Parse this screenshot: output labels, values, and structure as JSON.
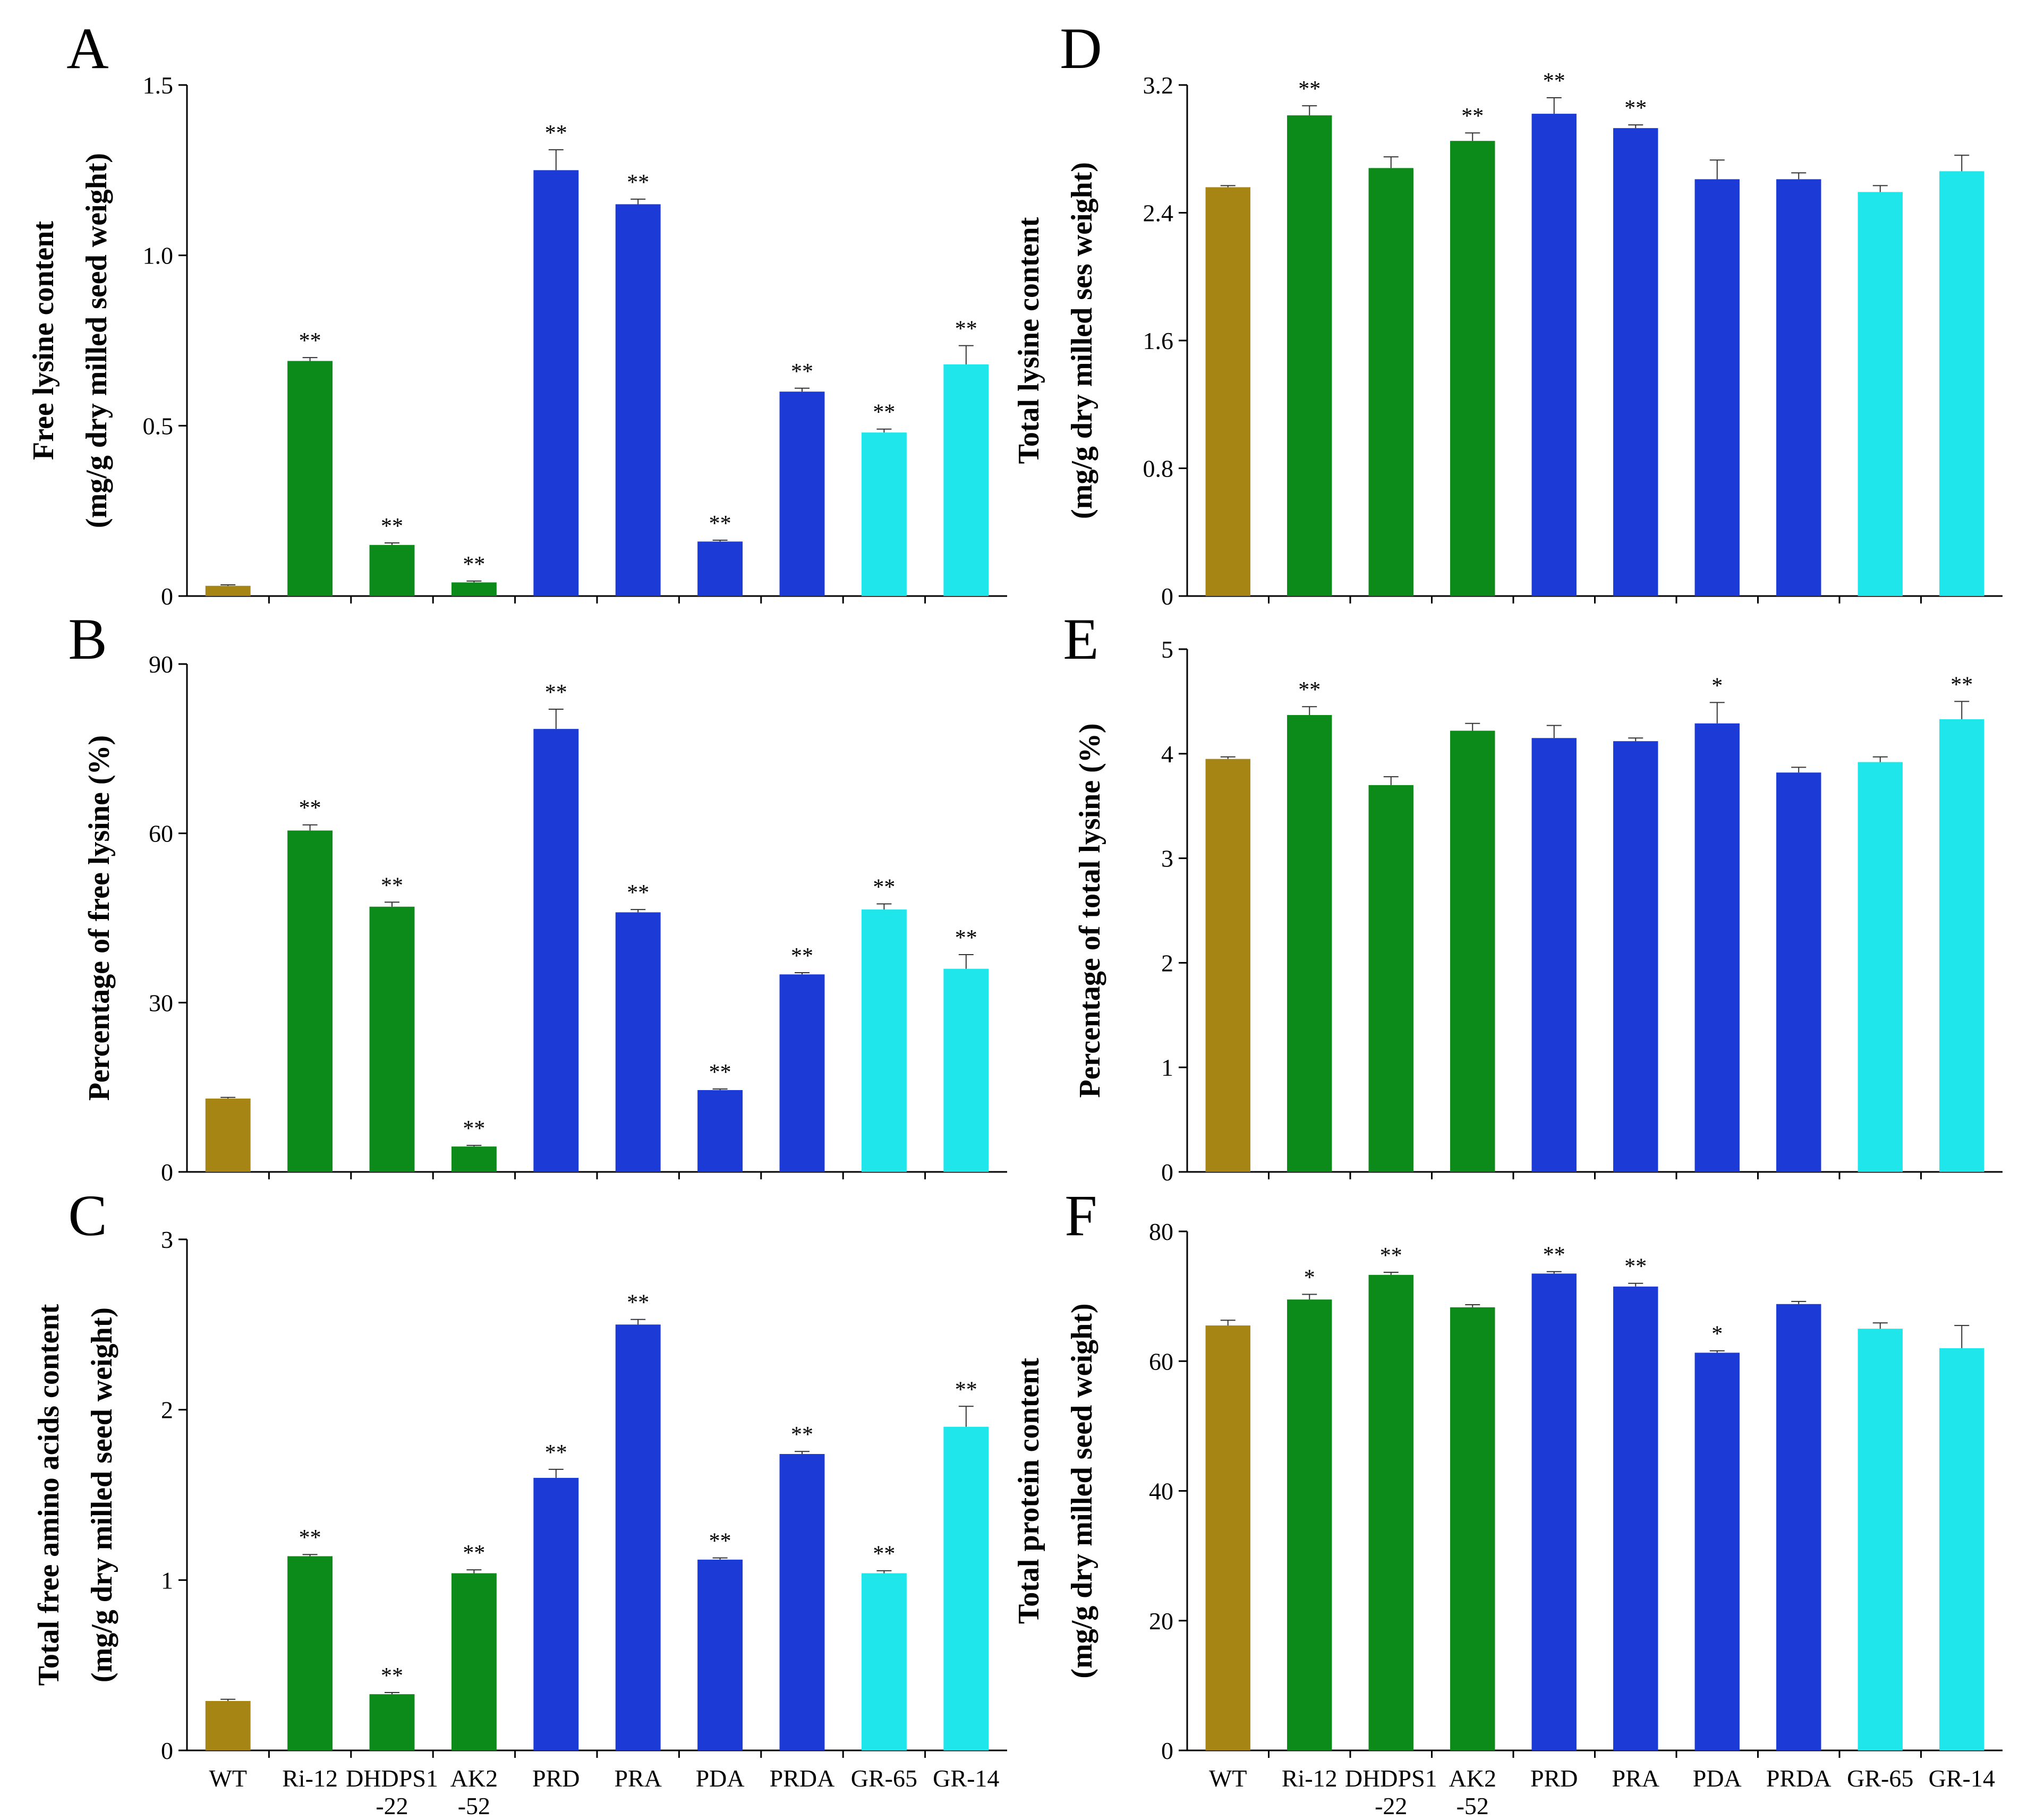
{
  "figure": {
    "categories": [
      "WT",
      "Ri-12",
      "DHDPS1",
      "AK2",
      "PRD",
      "PRA",
      "PDA",
      "PRDA",
      "GR-65",
      "GR-14"
    ],
    "category_sublabels": [
      "",
      "",
      "-22",
      "-52",
      "",
      "",
      "",
      "",
      "",
      ""
    ],
    "colors": {
      "wt": "#a68514",
      "green": "#0c8a1a",
      "blue": "#1b3ad6",
      "cyan": "#1fe6ea"
    },
    "bar_colors": [
      "#a68514",
      "#0c8a1a",
      "#0c8a1a",
      "#0c8a1a",
      "#1b3ad6",
      "#1b3ad6",
      "#1b3ad6",
      "#1b3ad6",
      "#1fe6ea",
      "#1fe6ea"
    ]
  },
  "chart_data": [
    {
      "panel": "A",
      "type": "bar",
      "ylabel": [
        "Free lysine content",
        "(mg/g dry milled seed weight)"
      ],
      "ylim": [
        0,
        1.5
      ],
      "yticks": [
        0,
        0.5,
        1.0,
        1.5
      ],
      "ytick_labels": [
        "0",
        "0.5",
        "1.0",
        "1.5"
      ],
      "values": [
        0.03,
        0.69,
        0.15,
        0.04,
        1.25,
        1.15,
        0.16,
        0.6,
        0.48,
        0.68
      ],
      "errors": [
        0.003,
        0.01,
        0.006,
        0.004,
        0.06,
        0.015,
        0.004,
        0.01,
        0.01,
        0.055
      ],
      "significance": [
        "",
        "**",
        "**",
        "**",
        "**",
        "**",
        "**",
        "**",
        "**",
        "**"
      ]
    },
    {
      "panel": "B",
      "type": "bar",
      "ylabel": [
        "Percentage of free lysine (%)"
      ],
      "ylim": [
        0,
        90
      ],
      "yticks": [
        0,
        30,
        60,
        90
      ],
      "ytick_labels": [
        "0",
        "30",
        "60",
        "90"
      ],
      "values": [
        13,
        60.5,
        47,
        4.5,
        78.5,
        46,
        14.5,
        35,
        46.5,
        36
      ],
      "errors": [
        0.2,
        1,
        0.8,
        0.2,
        3.5,
        0.5,
        0.2,
        0.3,
        1,
        2.5
      ],
      "significance": [
        "",
        "**",
        "**",
        "**",
        "**",
        "**",
        "**",
        "**",
        "**",
        "**"
      ]
    },
    {
      "panel": "C",
      "type": "bar",
      "ylabel": [
        "Total free amino acids content",
        "(mg/g dry milled seed weight)"
      ],
      "ylim": [
        0,
        3
      ],
      "yticks": [
        0,
        1,
        2,
        3
      ],
      "ytick_labels": [
        "0",
        "1",
        "2",
        "3"
      ],
      "values": [
        0.29,
        1.14,
        0.33,
        1.04,
        1.6,
        2.5,
        1.12,
        1.74,
        1.04,
        1.9
      ],
      "errors": [
        0.01,
        0.01,
        0.01,
        0.02,
        0.05,
        0.03,
        0.01,
        0.015,
        0.015,
        0.12
      ],
      "significance": [
        "",
        "**",
        "**",
        "**",
        "**",
        "**",
        "**",
        "**",
        "**",
        "**"
      ]
    },
    {
      "panel": "D",
      "type": "bar",
      "ylabel": [
        "Total lysine content",
        "(mg/g dry milled ses weight)"
      ],
      "ylim": [
        0,
        3.2
      ],
      "yticks": [
        0,
        0.8,
        1.6,
        2.4,
        3.2
      ],
      "ytick_labels": [
        "0",
        "0.8",
        "1.6",
        "2.4",
        "3.2"
      ],
      "values": [
        2.56,
        3.01,
        2.68,
        2.85,
        3.02,
        2.93,
        2.61,
        2.61,
        2.53,
        2.66
      ],
      "errors": [
        0.01,
        0.06,
        0.07,
        0.05,
        0.1,
        0.02,
        0.12,
        0.04,
        0.04,
        0.1
      ],
      "significance": [
        "",
        "**",
        "",
        "**",
        "**",
        "**",
        "",
        "",
        "",
        ""
      ]
    },
    {
      "panel": "E",
      "type": "bar",
      "ylabel": [
        "Percentage of total lysine (%)"
      ],
      "ylim": [
        0,
        5
      ],
      "yticks": [
        0,
        1,
        2,
        3,
        4,
        5
      ],
      "ytick_labels": [
        "0",
        "1",
        "2",
        "3",
        "4",
        "5"
      ],
      "values": [
        3.95,
        4.37,
        3.7,
        4.22,
        4.15,
        4.12,
        4.29,
        3.82,
        3.92,
        4.33
      ],
      "errors": [
        0.02,
        0.08,
        0.08,
        0.07,
        0.12,
        0.03,
        0.2,
        0.05,
        0.05,
        0.17
      ],
      "significance": [
        "",
        "**",
        "",
        "",
        "",
        "",
        "*",
        "",
        "",
        "**"
      ]
    },
    {
      "panel": "F",
      "type": "bar",
      "ylabel": [
        "Total protein content",
        "(mg/g dry milled seed weight)"
      ],
      "ylim": [
        0,
        80
      ],
      "yticks": [
        0,
        20,
        40,
        60,
        80
      ],
      "ytick_labels": [
        "0",
        "20",
        "40",
        "60",
        "80"
      ],
      "values": [
        65.5,
        69.5,
        73.3,
        68.3,
        73.5,
        71.5,
        61.3,
        68.8,
        65,
        62
      ],
      "errors": [
        0.8,
        0.8,
        0.4,
        0.4,
        0.3,
        0.5,
        0.3,
        0.4,
        0.9,
        3.5
      ],
      "significance": [
        "",
        "*",
        "**",
        "",
        "**",
        "**",
        "*",
        "",
        "",
        ""
      ]
    }
  ]
}
